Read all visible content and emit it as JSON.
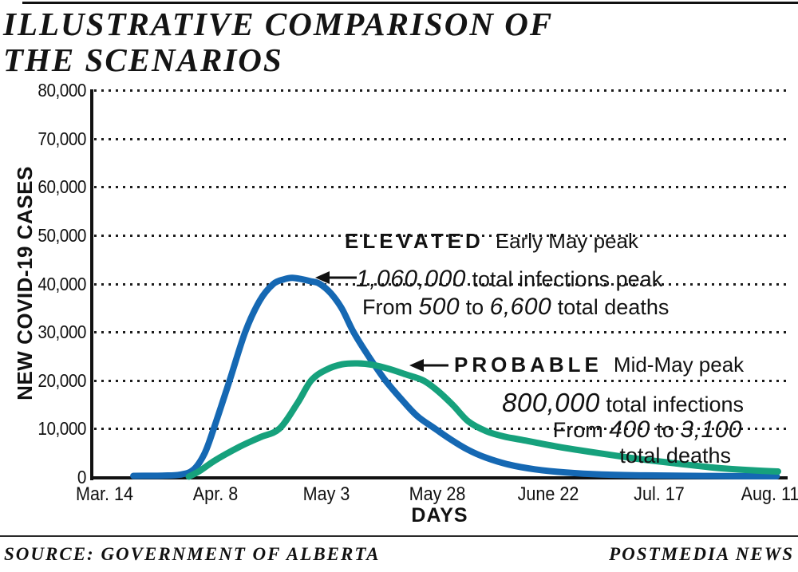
{
  "page": {
    "title_lines": [
      "ILLUSTRATIVE COMPARISON OF",
      "THE SCENARIOS"
    ],
    "source": "SOURCE: GOVERNMENT OF ALBERTA",
    "credit": "POSTMEDIA NEWS"
  },
  "chart_data": {
    "type": "line",
    "title": "ILLUSTRATIVE COMPARISON OF THE SCENARIOS",
    "xlabel": "DAYS",
    "ylabel": "NEW COVID-19 CASES",
    "ylim": [
      0,
      80000
    ],
    "grid": "dotted horizontal every 10,000",
    "x_tick_labels": [
      "Mar. 14",
      "Apr. 8",
      "May 3",
      "May 28",
      "June 22",
      "Jul. 17",
      "Aug. 11"
    ],
    "x_tick_days": [
      0,
      25,
      50,
      75,
      100,
      125,
      150
    ],
    "y_tick_labels": [
      "0",
      "10,000",
      "20,000",
      "30,000",
      "40,000",
      "50,000",
      "60,000",
      "70,000",
      "80,000"
    ],
    "y_tick_values": [
      0,
      10000,
      20000,
      30000,
      40000,
      50000,
      60000,
      70000,
      80000
    ],
    "grid_values": [
      10000,
      20000,
      30000,
      40000,
      50000,
      60000,
      70000,
      80000
    ],
    "series": [
      {
        "name": "ELEVATED",
        "color": "#1568b3",
        "peak_value_cases": 41200,
        "peak_timing": "Early May peak",
        "points": [
          [
            6.5,
            250
          ],
          [
            13,
            300
          ],
          [
            17,
            500
          ],
          [
            20,
            1500
          ],
          [
            22.5,
            4800
          ],
          [
            24.6,
            10000
          ],
          [
            28.2,
            20000
          ],
          [
            31.7,
            30000
          ],
          [
            35,
            36500
          ],
          [
            38,
            39900
          ],
          [
            40.5,
            40900
          ],
          [
            42.3,
            41200
          ],
          [
            44.5,
            40900
          ],
          [
            46.4,
            40500
          ],
          [
            48.4,
            40000
          ],
          [
            51,
            38000
          ],
          [
            53.5,
            34800
          ],
          [
            56.1,
            30000
          ],
          [
            59.5,
            25000
          ],
          [
            63.3,
            20000
          ],
          [
            67,
            16000
          ],
          [
            70.5,
            12600
          ],
          [
            74.5,
            10000
          ],
          [
            78,
            7800
          ],
          [
            82,
            5600
          ],
          [
            86,
            4000
          ],
          [
            91,
            2600
          ],
          [
            97,
            1600
          ],
          [
            104,
            950
          ],
          [
            112,
            550
          ],
          [
            122,
            350
          ],
          [
            135,
            230
          ],
          [
            151.5,
            160
          ]
        ]
      },
      {
        "name": "PROBABLE",
        "color": "#16a17c",
        "peak_value_cases": 23500,
        "peak_timing": "Mid-May peak",
        "points": [
          [
            19,
            100
          ],
          [
            21.5,
            1300
          ],
          [
            25,
            3500
          ],
          [
            30.5,
            6300
          ],
          [
            35,
            8200
          ],
          [
            39.4,
            10000
          ],
          [
            43.5,
            15300
          ],
          [
            46.6,
            20000
          ],
          [
            50,
            22200
          ],
          [
            53.5,
            23300
          ],
          [
            57,
            23500
          ],
          [
            60.5,
            23200
          ],
          [
            64,
            22400
          ],
          [
            68,
            21200
          ],
          [
            71.8,
            20000
          ],
          [
            75,
            17900
          ],
          [
            78.5,
            14900
          ],
          [
            82,
            11500
          ],
          [
            86,
            9500
          ],
          [
            90,
            8400
          ],
          [
            94,
            7700
          ],
          [
            102,
            6300
          ],
          [
            111,
            5000
          ],
          [
            120,
            3800
          ],
          [
            129,
            2800
          ],
          [
            138,
            1900
          ],
          [
            146,
            1400
          ],
          [
            151.8,
            1150
          ]
        ]
      }
    ],
    "annotations": {
      "elevated": {
        "label": "ELEVATED",
        "peak": "Early May peak",
        "infections_value": "1,060,000",
        "infections_text": "total infections peak",
        "deaths_prefix": "From",
        "deaths_low": "500",
        "deaths_conj": "to",
        "deaths_high": "6,600",
        "deaths_suffix": "total deaths"
      },
      "probable": {
        "label": "PROBABLE",
        "peak": "Mid-May peak",
        "infections_value": "800,000",
        "infections_text": "total infections",
        "deaths_prefix": "From",
        "deaths_low": "400",
        "deaths_conj": "to",
        "deaths_high": "3,100",
        "deaths_suffix": "total deaths"
      }
    }
  }
}
